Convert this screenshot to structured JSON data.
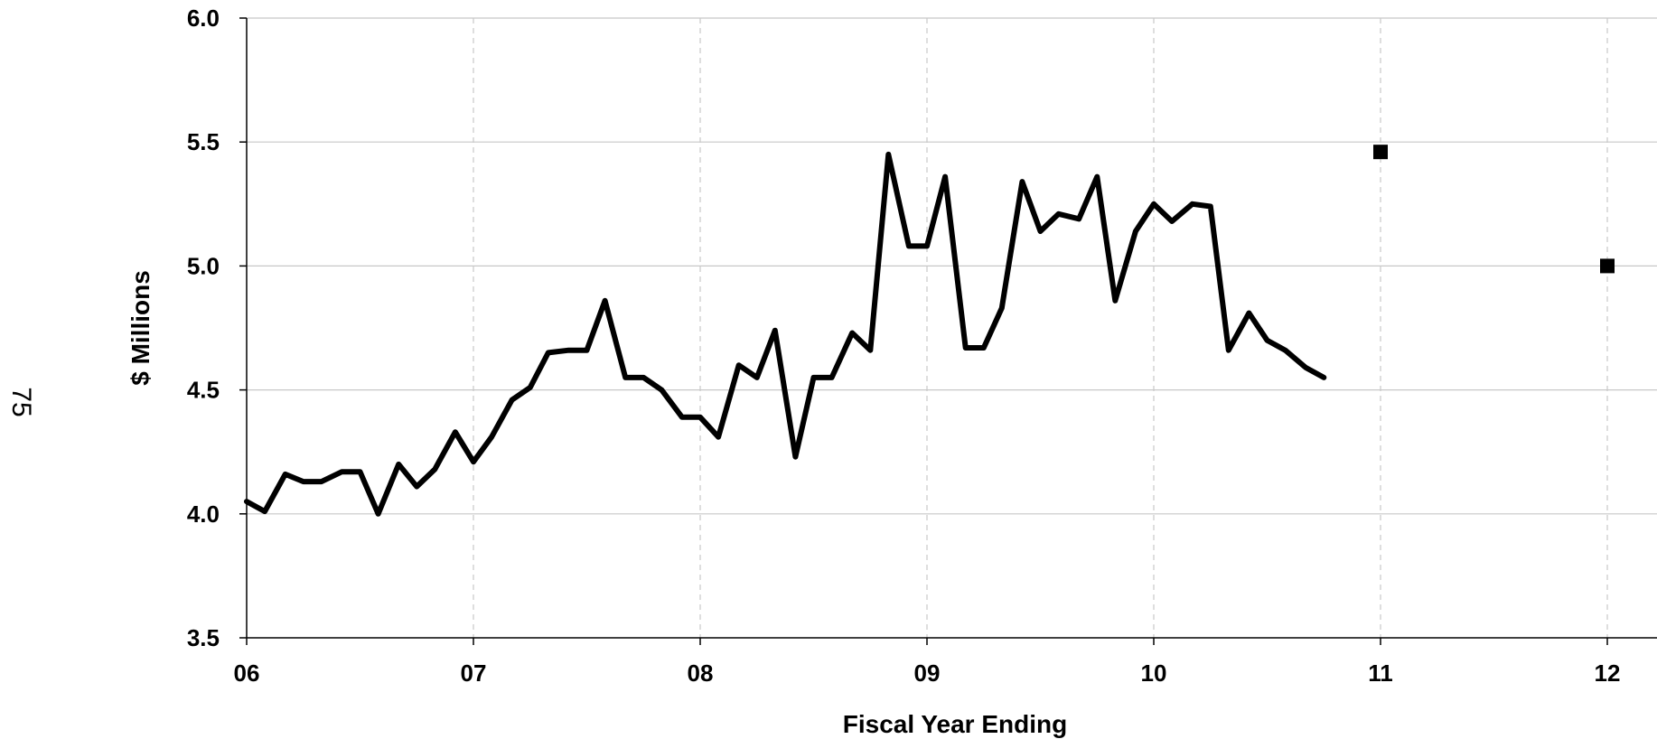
{
  "page_number": "75",
  "chart_data": {
    "type": "line",
    "xlabel": "Fiscal Year Ending",
    "ylabel": "$ Millions",
    "xlim": [
      6,
      12.2
    ],
    "ylim": [
      3.5,
      6.0
    ],
    "x_ticks": [
      6,
      7,
      8,
      9,
      10,
      11,
      12
    ],
    "x_tick_labels": [
      "06",
      "07",
      "08",
      "09",
      "10",
      "11",
      "12"
    ],
    "y_ticks": [
      3.5,
      4.0,
      4.5,
      5.0,
      5.5,
      6.0
    ],
    "y_tick_labels": [
      "3.5",
      "4.0",
      "4.5",
      "5.0",
      "5.5",
      "6.0"
    ],
    "grid": {
      "horizontal": "solid",
      "vertical": "dashed"
    },
    "series": [
      {
        "type": "line",
        "x": [
          6.0,
          6.08,
          6.17,
          6.25,
          6.33,
          6.42,
          6.5,
          6.58,
          6.67,
          6.75,
          6.83,
          6.92,
          7.0,
          7.08,
          7.17,
          7.25,
          7.33,
          7.42,
          7.5,
          7.58,
          7.67,
          7.75,
          7.83,
          7.92,
          8.0,
          8.08,
          8.17,
          8.25,
          8.33,
          8.42,
          8.5,
          8.58,
          8.67,
          8.75,
          8.83,
          8.92,
          9.0,
          9.08,
          9.17,
          9.25,
          9.33,
          9.42,
          9.5,
          9.58,
          9.67,
          9.75,
          9.83,
          9.92,
          10.0,
          10.08,
          10.17,
          10.25,
          10.33,
          10.42,
          10.5,
          10.58,
          10.67,
          10.75
        ],
        "y": [
          4.05,
          4.01,
          4.16,
          4.13,
          4.13,
          4.17,
          4.17,
          4.0,
          4.2,
          4.11,
          4.18,
          4.33,
          4.21,
          4.31,
          4.46,
          4.51,
          4.65,
          4.66,
          4.66,
          4.86,
          4.55,
          4.55,
          4.5,
          4.39,
          4.39,
          4.31,
          4.6,
          4.55,
          4.74,
          4.23,
          4.55,
          4.55,
          4.73,
          4.66,
          5.45,
          5.08,
          5.08,
          5.36,
          4.67,
          4.67,
          4.83,
          5.34,
          5.14,
          5.21,
          5.19,
          5.36,
          4.86,
          5.14,
          5.25,
          5.18,
          5.25,
          5.24,
          4.66,
          4.81,
          4.7,
          4.66,
          4.59,
          4.55
        ]
      },
      {
        "type": "scatter",
        "marker": "square",
        "x": [
          11,
          12
        ],
        "y": [
          5.46,
          5.0
        ]
      }
    ]
  }
}
